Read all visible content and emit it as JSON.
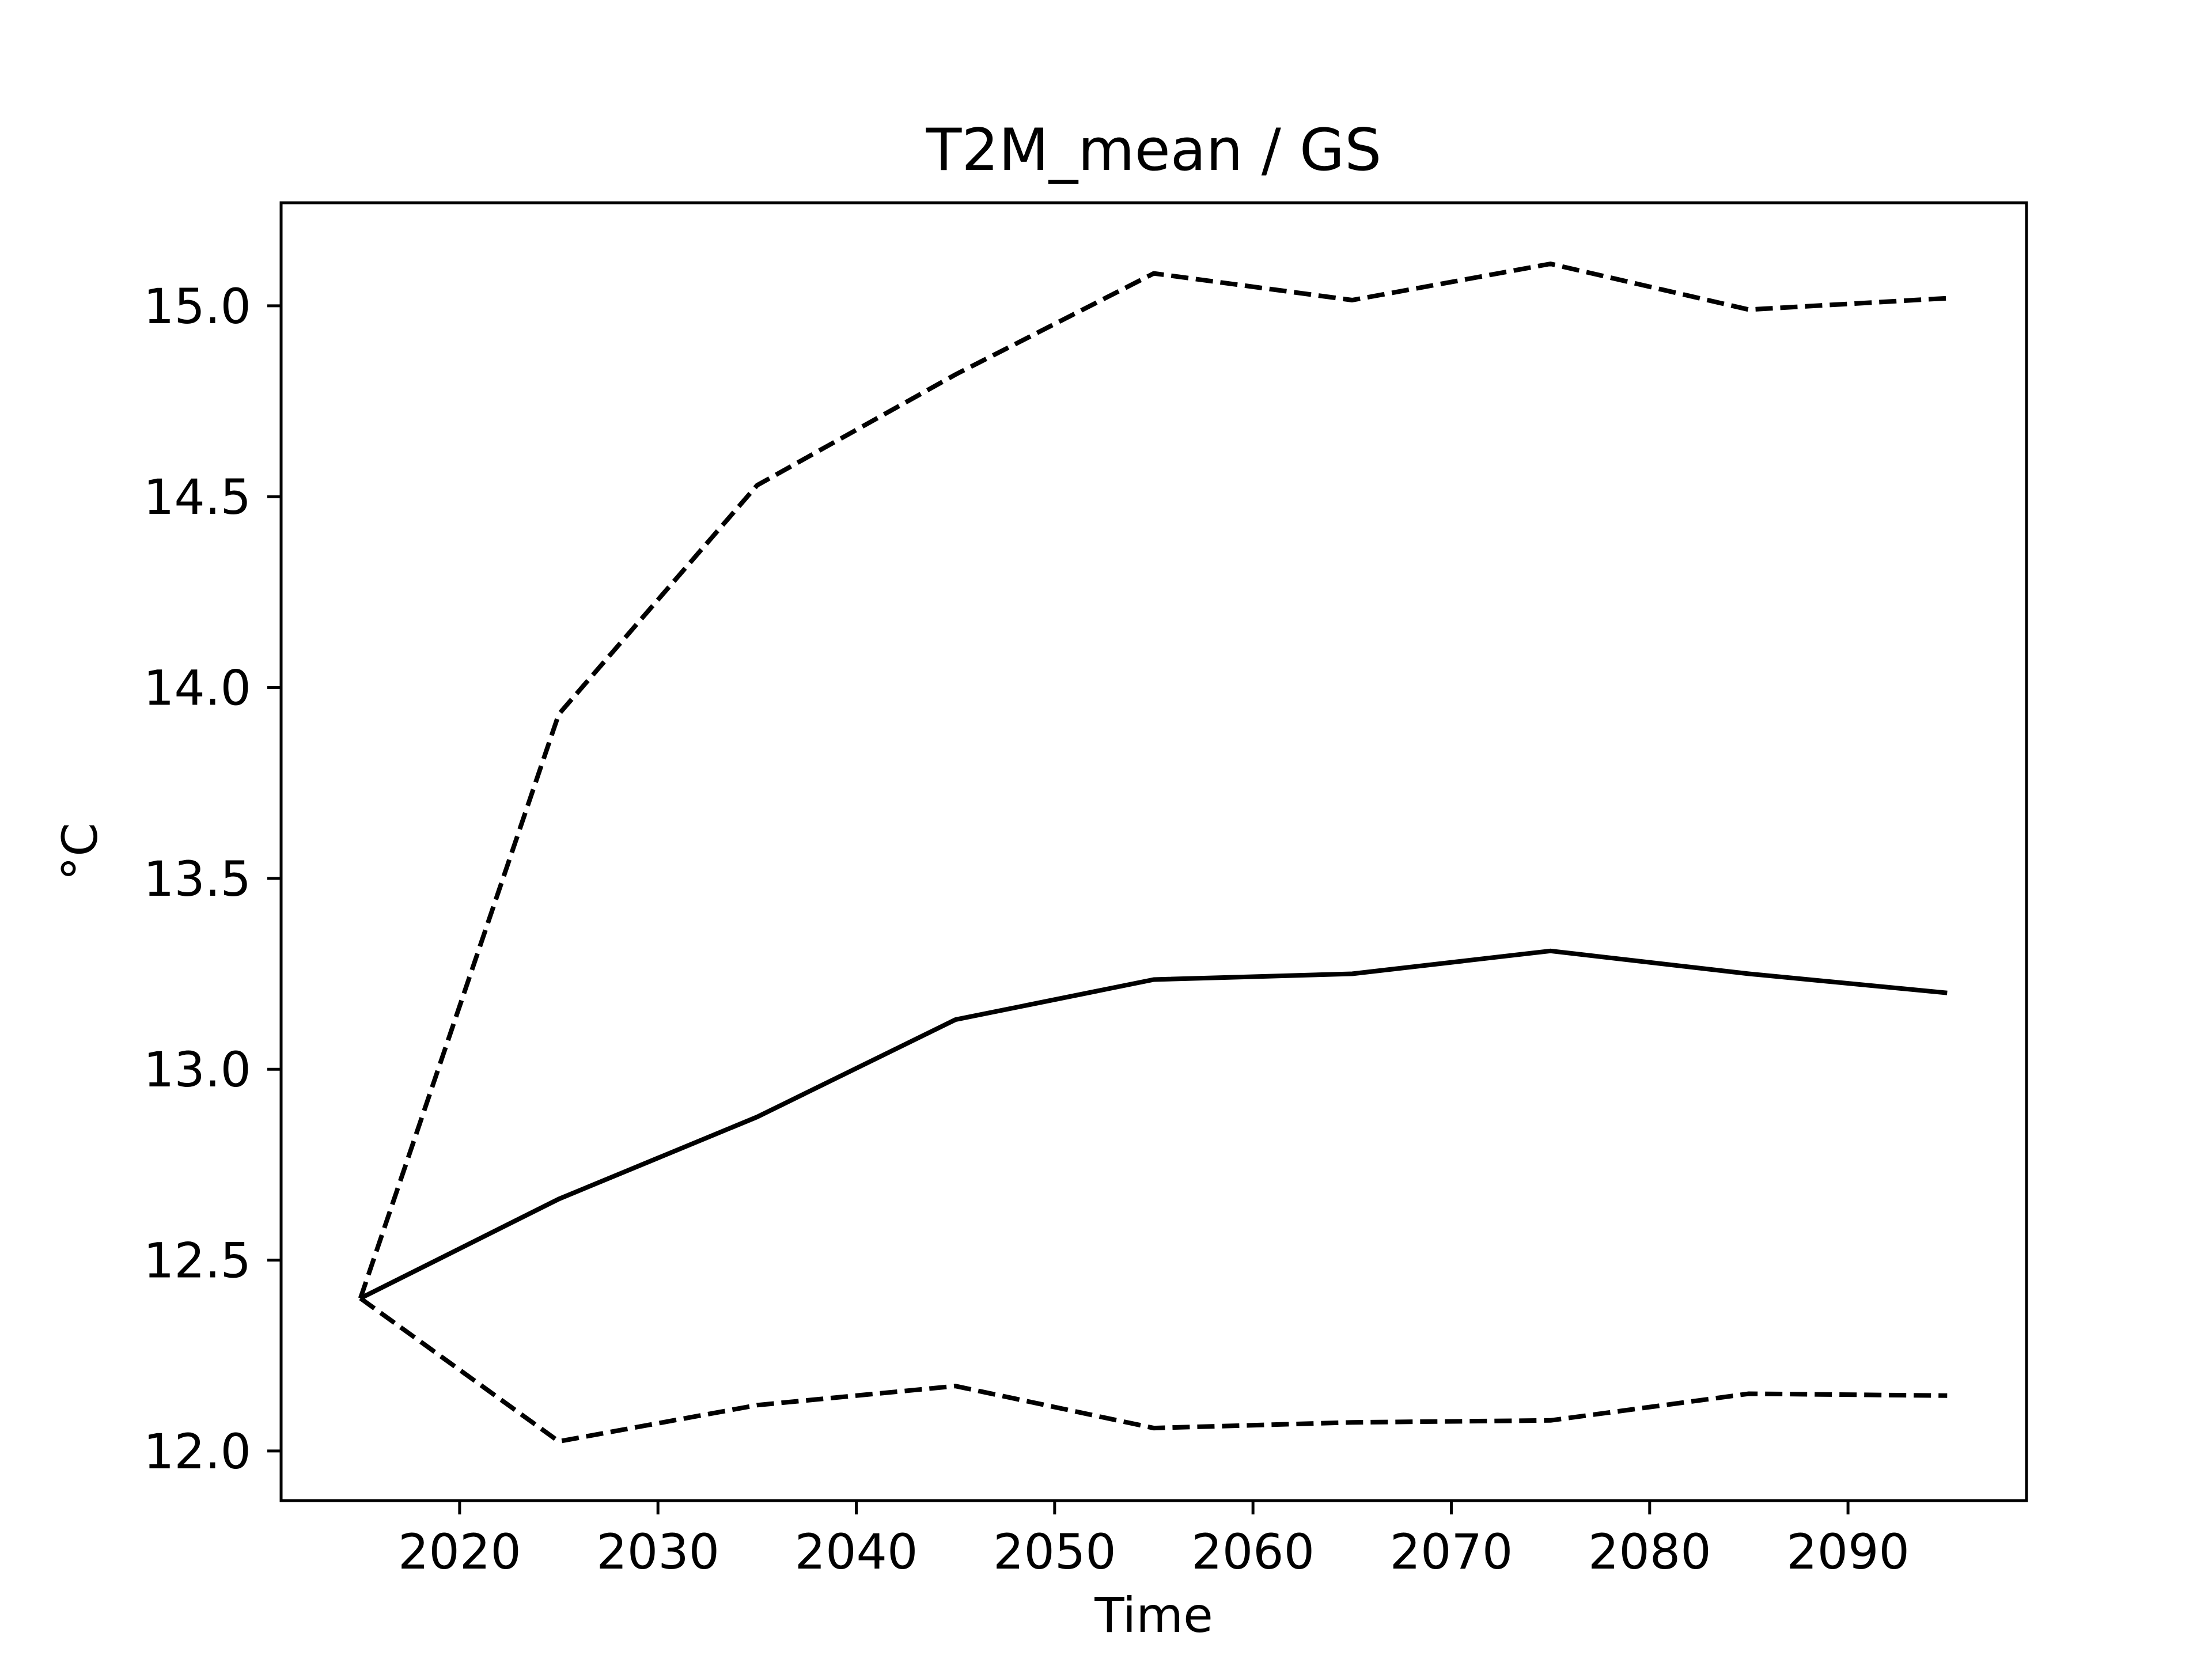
{
  "chart_data": {
    "type": "line",
    "title": "T2M_mean / GS",
    "xlabel": "Time",
    "ylabel": "°C",
    "xlim": [
      2011,
      2099
    ],
    "ylim": [
      11.87,
      15.27
    ],
    "xticks": [
      2020,
      2030,
      2040,
      2050,
      2060,
      2070,
      2080,
      2090
    ],
    "xtick_labels": [
      "2020",
      "2030",
      "2040",
      "2050",
      "2060",
      "2070",
      "2080",
      "2090"
    ],
    "yticks": [
      12.0,
      12.5,
      13.0,
      13.5,
      14.0,
      14.5,
      15.0
    ],
    "ytick_labels": [
      "12.0",
      "12.5",
      "13.0",
      "13.5",
      "14.0",
      "14.5",
      "15.0"
    ],
    "grid": false,
    "legend": "none",
    "x": [
      2015,
      2025,
      2035,
      2045,
      2055,
      2065,
      2075,
      2085,
      2095
    ],
    "series": [
      {
        "style": "solid",
        "color": "#000000",
        "values": [
          12.4,
          12.66,
          12.875,
          13.13,
          13.235,
          13.25,
          13.31,
          13.25,
          13.2
        ]
      },
      {
        "style": "dashed",
        "color": "#000000",
        "values": [
          12.4,
          13.93,
          14.53,
          14.82,
          15.085,
          15.015,
          15.11,
          14.99,
          15.02
        ]
      },
      {
        "style": "dashed",
        "color": "#000000",
        "values": [
          12.4,
          12.025,
          12.12,
          12.17,
          12.06,
          12.075,
          12.08,
          12.15,
          12.145
        ]
      }
    ]
  }
}
